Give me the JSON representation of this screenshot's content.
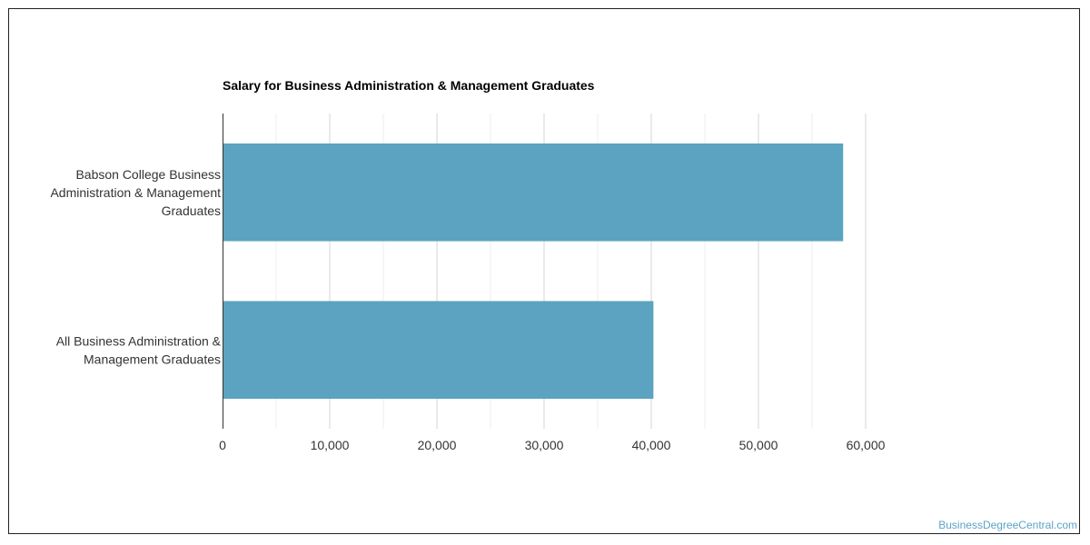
{
  "chart_data": {
    "type": "bar",
    "orientation": "horizontal",
    "title": "Salary for Business Administration & Management Graduates",
    "categories": [
      [
        "Babson College Business",
        "Administration & Management",
        "Graduates"
      ],
      [
        "All Business Administration &",
        "Management Graduates"
      ]
    ],
    "values": [
      57900,
      40200
    ],
    "xlim": [
      0,
      60000
    ],
    "x_ticks": [
      "0",
      "10,000",
      "20,000",
      "30,000",
      "40,000",
      "50,000",
      "60,000"
    ],
    "grid": true,
    "bar_color": "#5ba3c0"
  },
  "watermark": "BusinessDegreeCentral.com"
}
